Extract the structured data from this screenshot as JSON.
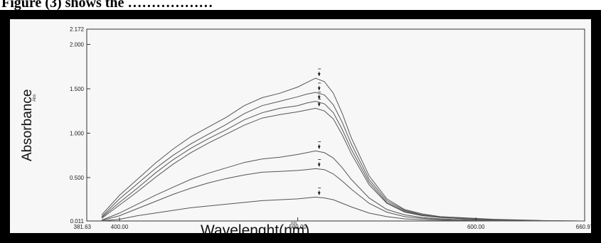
{
  "caption": "Figure (3) shows the ………………",
  "chart_data": {
    "type": "line",
    "title": "",
    "xlabel": "Wavelenght(nm)",
    "xunit": "nm.",
    "ylabel": "Absorbance",
    "yunit": "Abs",
    "xlim": [
      381.63,
      660.97
    ],
    "ylim": [
      0.011,
      2.172
    ],
    "xticks": [
      381.63,
      400.0,
      500.0,
      600.0,
      660.97
    ],
    "xtick_labels": [
      "381.63",
      "400.00",
      "500.00",
      "600.00",
      "660.97"
    ],
    "yticks": [
      0.011,
      0.5,
      1.0,
      1.5,
      2.0,
      2.172
    ],
    "ytick_labels": [
      "0.011",
      "0.500",
      "1.000",
      "1.500",
      "2.000",
      "2.172"
    ],
    "grid": false,
    "x": [
      390,
      400,
      410,
      420,
      430,
      440,
      450,
      460,
      470,
      480,
      490,
      500,
      505,
      510,
      515,
      520,
      525,
      530,
      540,
      550,
      560,
      570,
      580,
      590,
      600,
      610,
      620,
      630,
      640,
      650,
      660
    ],
    "series": [
      {
        "values": [
          0.08,
          0.3,
          0.48,
          0.66,
          0.82,
          0.96,
          1.07,
          1.18,
          1.31,
          1.4,
          1.45,
          1.52,
          1.57,
          1.62,
          1.58,
          1.45,
          1.22,
          0.95,
          0.52,
          0.26,
          0.14,
          0.09,
          0.06,
          0.05,
          0.04,
          0.03,
          0.025,
          0.02,
          0.015,
          0.012,
          0.011
        ]
      },
      {
        "values": [
          0.06,
          0.26,
          0.43,
          0.6,
          0.75,
          0.88,
          0.99,
          1.1,
          1.22,
          1.31,
          1.36,
          1.41,
          1.44,
          1.46,
          1.43,
          1.32,
          1.12,
          0.88,
          0.48,
          0.24,
          0.13,
          0.08,
          0.055,
          0.045,
          0.035,
          0.028,
          0.022,
          0.018,
          0.014,
          0.012,
          0.011
        ]
      },
      {
        "values": [
          0.05,
          0.22,
          0.38,
          0.55,
          0.7,
          0.83,
          0.94,
          1.04,
          1.15,
          1.23,
          1.28,
          1.31,
          1.34,
          1.36,
          1.33,
          1.23,
          1.04,
          0.82,
          0.45,
          0.22,
          0.12,
          0.075,
          0.05,
          0.04,
          0.032,
          0.026,
          0.02,
          0.016,
          0.013,
          0.012,
          0.011
        ]
      },
      {
        "values": [
          0.04,
          0.19,
          0.34,
          0.5,
          0.65,
          0.78,
          0.89,
          0.99,
          1.09,
          1.17,
          1.21,
          1.24,
          1.26,
          1.28,
          1.25,
          1.16,
          0.98,
          0.77,
          0.42,
          0.21,
          0.11,
          0.07,
          0.05,
          0.04,
          0.03,
          0.025,
          0.02,
          0.016,
          0.013,
          0.012,
          0.011
        ]
      },
      {
        "values": [
          0.02,
          0.1,
          0.2,
          0.3,
          0.39,
          0.48,
          0.55,
          0.61,
          0.67,
          0.71,
          0.73,
          0.76,
          0.78,
          0.8,
          0.78,
          0.72,
          0.61,
          0.48,
          0.27,
          0.14,
          0.08,
          0.05,
          0.035,
          0.028,
          0.022,
          0.018,
          0.015,
          0.013,
          0.012,
          0.011,
          0.011
        ]
      },
      {
        "values": [
          0.015,
          0.07,
          0.15,
          0.23,
          0.31,
          0.38,
          0.44,
          0.49,
          0.53,
          0.56,
          0.57,
          0.58,
          0.59,
          0.6,
          0.59,
          0.54,
          0.46,
          0.37,
          0.21,
          0.11,
          0.06,
          0.04,
          0.03,
          0.025,
          0.02,
          0.016,
          0.014,
          0.012,
          0.011,
          0.011,
          0.011
        ]
      },
      {
        "values": [
          0.011,
          0.03,
          0.07,
          0.1,
          0.13,
          0.16,
          0.18,
          0.2,
          0.22,
          0.24,
          0.25,
          0.26,
          0.27,
          0.28,
          0.27,
          0.25,
          0.21,
          0.17,
          0.1,
          0.06,
          0.035,
          0.025,
          0.02,
          0.016,
          0.014,
          0.012,
          0.011,
          0.011,
          0.011,
          0.011,
          0.011
        ]
      }
    ],
    "peak_x": 512,
    "line_color": "#555555",
    "axis_color": "#333333"
  }
}
